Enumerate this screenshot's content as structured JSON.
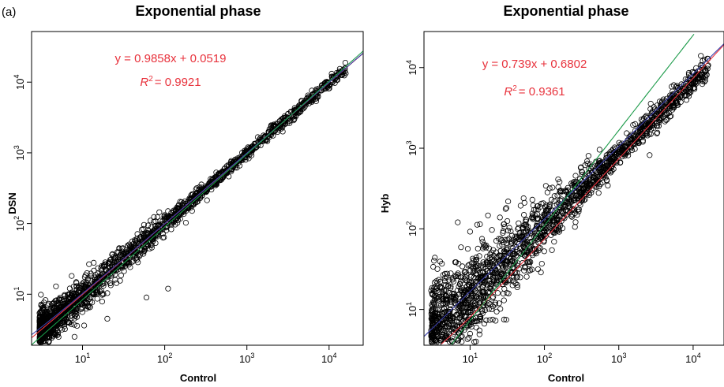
{
  "figure_label": "(a)",
  "colors": {
    "points": "#000000",
    "equation": "#e8323c",
    "fit_red": "#e8323c",
    "fit_blue": "#3b3fa8",
    "fit_green": "#1a9a48"
  },
  "chart_data": [
    {
      "type": "scatter",
      "title": "Exponential phase",
      "xlabel": "Control",
      "ylabel": "DSN",
      "xscale": "log10",
      "yscale": "log10",
      "xlim": [
        2.4,
        26000
      ],
      "ylim": [
        1.9,
        52000
      ],
      "xticks": [
        10,
        100,
        1000,
        10000
      ],
      "yticks": [
        10,
        100,
        1000,
        10000
      ],
      "equation": "y = 0.9858x + 0.0519",
      "r2_label": "R",
      "r2_value": "= 0.9921",
      "regression": {
        "slope": 0.9858,
        "intercept": 0.0519
      },
      "lines": [
        {
          "color": "red",
          "slope": 0.9858,
          "intercept": 0.0519
        },
        {
          "color": "blue",
          "slope": 0.99,
          "intercept": 0.3
        },
        {
          "color": "green",
          "fn": "power",
          "a": 0.78,
          "b": 1.03
        }
      ],
      "point_cloud": {
        "count": 1800,
        "x_range": [
          3,
          16000
        ],
        "trend": "slope ~0.99 on log-log",
        "spread": "tight"
      },
      "highlighted_points": [
        [
          3,
          3
        ],
        [
          6,
          3.5
        ],
        [
          8,
          2.5
        ],
        [
          20,
          4.5
        ],
        [
          60,
          9
        ],
        [
          110,
          12
        ]
      ]
    },
    {
      "type": "scatter",
      "title": "Exponential phase",
      "xlabel": "Control",
      "ylabel": "Hyb",
      "xscale": "log10",
      "yscale": "log10",
      "xlim": [
        2.4,
        26000
      ],
      "ylim": [
        3.6,
        28000
      ],
      "xticks": [
        10,
        100,
        1000,
        10000
      ],
      "yticks": [
        10,
        100,
        1000,
        10000
      ],
      "equation": "y = 0.739x + 0.6802",
      "r2_label": "R",
      "r2_value": "= 0.9361",
      "regression": {
        "slope": 0.739,
        "intercept": 0.6802
      },
      "lines": [
        {
          "color": "red",
          "slope": 0.739,
          "intercept": 0.6802
        },
        {
          "color": "blue",
          "fn": "power",
          "a": 2.1,
          "b": 0.9
        },
        {
          "color": "green",
          "fn": "power",
          "a": 0.48,
          "b": 1.18
        }
      ],
      "point_cloud": {
        "count": 2000,
        "x_range": [
          3,
          16000
        ],
        "trend": "slope ~0.8 on log-log",
        "spread": "wide at low counts"
      },
      "highlighted_points": [
        [
          3,
          5.5
        ],
        [
          5,
          13
        ],
        [
          6,
          5
        ],
        [
          10,
          5
        ],
        [
          12,
          4
        ],
        [
          2600,
          820
        ]
      ]
    }
  ]
}
